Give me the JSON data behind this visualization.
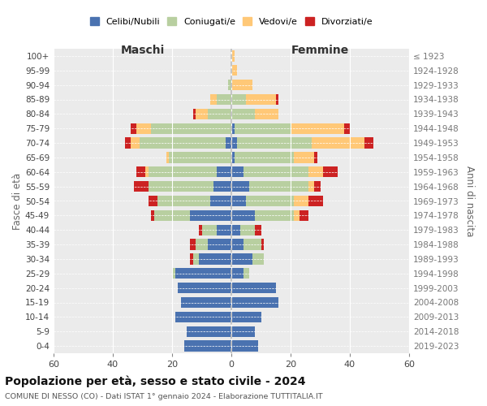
{
  "age_groups": [
    "0-4",
    "5-9",
    "10-14",
    "15-19",
    "20-24",
    "25-29",
    "30-34",
    "35-39",
    "40-44",
    "45-49",
    "50-54",
    "55-59",
    "60-64",
    "65-69",
    "70-74",
    "75-79",
    "80-84",
    "85-89",
    "90-94",
    "95-99",
    "100+"
  ],
  "birth_years": [
    "2019-2023",
    "2014-2018",
    "2009-2013",
    "2004-2008",
    "1999-2003",
    "1994-1998",
    "1989-1993",
    "1984-1988",
    "1979-1983",
    "1974-1978",
    "1969-1973",
    "1964-1968",
    "1959-1963",
    "1954-1958",
    "1949-1953",
    "1944-1948",
    "1939-1943",
    "1934-1938",
    "1929-1933",
    "1924-1928",
    "≤ 1923"
  ],
  "male": {
    "celibi": [
      16,
      15,
      19,
      17,
      18,
      19,
      11,
      8,
      5,
      14,
      7,
      6,
      5,
      0,
      2,
      0,
      0,
      0,
      0,
      0,
      0
    ],
    "coniugati": [
      0,
      0,
      0,
      0,
      0,
      1,
      2,
      4,
      5,
      12,
      18,
      22,
      23,
      21,
      29,
      27,
      8,
      5,
      1,
      0,
      0
    ],
    "vedovi": [
      0,
      0,
      0,
      0,
      0,
      0,
      0,
      0,
      0,
      0,
      0,
      0,
      1,
      1,
      3,
      5,
      4,
      2,
      0,
      0,
      0
    ],
    "divorziati": [
      0,
      0,
      0,
      0,
      0,
      0,
      1,
      2,
      1,
      1,
      3,
      5,
      3,
      0,
      2,
      2,
      1,
      0,
      0,
      0,
      0
    ]
  },
  "female": {
    "nubili": [
      9,
      8,
      10,
      16,
      15,
      4,
      7,
      4,
      3,
      8,
      5,
      6,
      4,
      1,
      2,
      1,
      0,
      0,
      0,
      0,
      0
    ],
    "coniugate": [
      0,
      0,
      0,
      0,
      0,
      2,
      4,
      6,
      5,
      13,
      16,
      20,
      22,
      20,
      25,
      19,
      8,
      5,
      0,
      0,
      0
    ],
    "vedove": [
      0,
      0,
      0,
      0,
      0,
      0,
      0,
      0,
      0,
      2,
      5,
      2,
      5,
      7,
      18,
      18,
      8,
      10,
      7,
      2,
      1
    ],
    "divorziate": [
      0,
      0,
      0,
      0,
      0,
      0,
      0,
      1,
      2,
      3,
      5,
      2,
      5,
      1,
      3,
      2,
      0,
      1,
      0,
      0,
      0
    ]
  },
  "colors": {
    "celibi": "#4a72b0",
    "coniugati": "#b8cfa0",
    "vedovi": "#ffc877",
    "divorziati": "#cc2222"
  },
  "xlim": 60,
  "title": "Popolazione per età, sesso e stato civile - 2024",
  "subtitle": "COMUNE DI NESSO (CO) - Dati ISTAT 1° gennaio 2024 - Elaborazione TUTTITALIA.IT",
  "ylabel": "Fasce di età",
  "ylabel_right": "Anni di nascita",
  "label_maschi": "Maschi",
  "label_femmine": "Femmine",
  "legend_labels": [
    "Celibi/Nubili",
    "Coniugati/e",
    "Vedovi/e",
    "Divorziati/e"
  ],
  "background_color": "#ffffff",
  "plot_bg_color": "#ebebeb",
  "grid_color": "#ffffff"
}
